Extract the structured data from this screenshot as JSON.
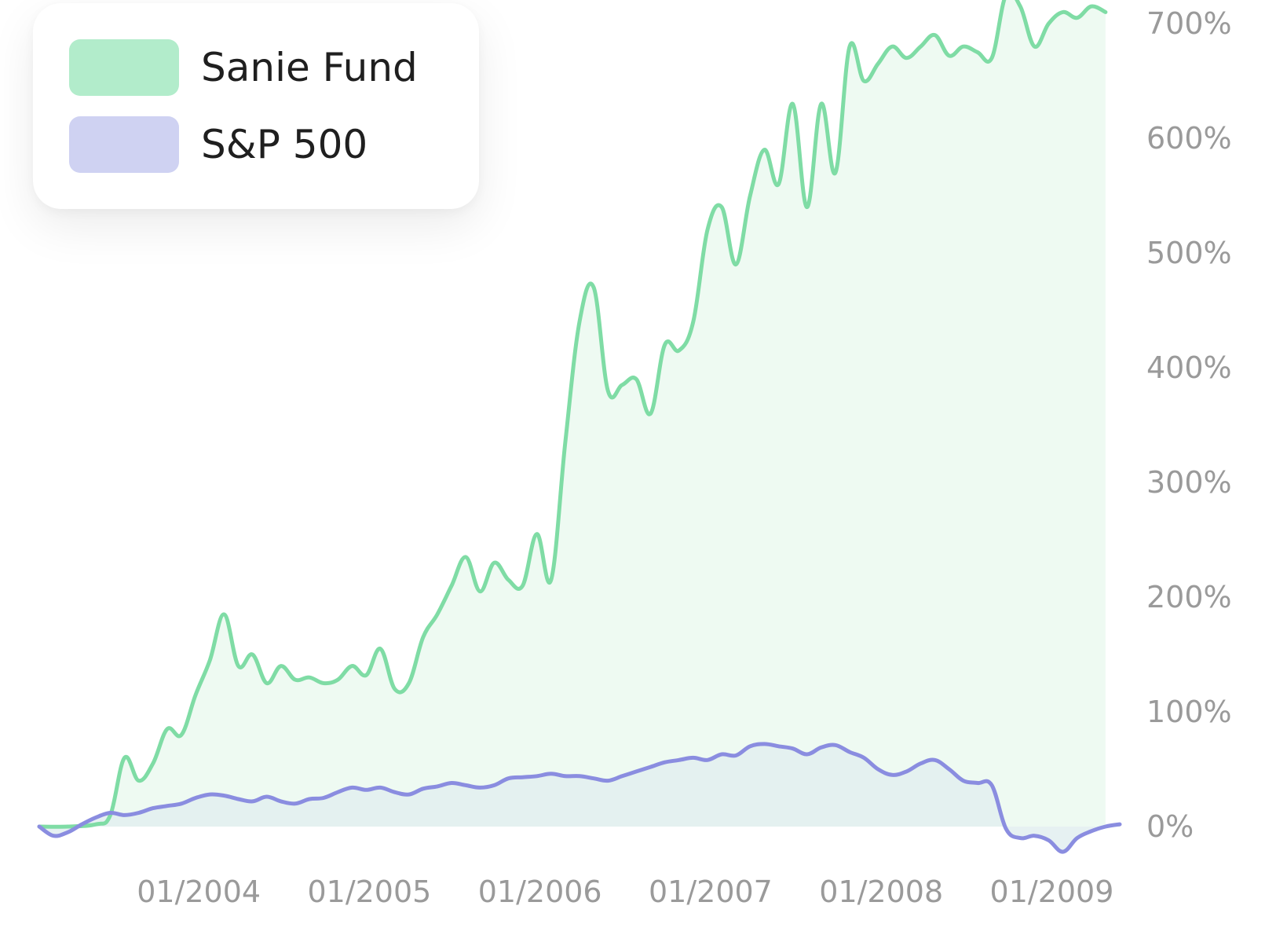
{
  "chart_data": {
    "type": "area",
    "title": "",
    "xlabel": "",
    "ylabel": "",
    "x_tick_labels": [
      "01/2004",
      "01/2005",
      "01/2006",
      "01/2007",
      "01/2008",
      "01/2009"
    ],
    "y_tick_labels": [
      "0%",
      "100%",
      "200%",
      "300%",
      "400%",
      "500%",
      "600%",
      "700%"
    ],
    "ylim": [
      -30,
      720
    ],
    "xlim": [
      "2003-02",
      "2009-06"
    ],
    "legend_position": "top-left",
    "grid": false,
    "series": [
      {
        "name": "Sanie Fund",
        "color": "#7fdca5",
        "fill": "#eefaf2",
        "swatch": "#b2eccb",
        "points": [
          [
            "2003-02",
            0
          ],
          [
            "2003-04",
            0
          ],
          [
            "2003-06",
            2
          ],
          [
            "2003-07",
            10
          ],
          [
            "2003-08",
            60
          ],
          [
            "2003-09",
            40
          ],
          [
            "2003-10",
            55
          ],
          [
            "2003-11",
            85
          ],
          [
            "2003-12",
            80
          ],
          [
            "2004-01",
            115
          ],
          [
            "2004-02",
            145
          ],
          [
            "2004-03",
            185
          ],
          [
            "2004-04",
            140
          ],
          [
            "2004-05",
            150
          ],
          [
            "2004-06",
            125
          ],
          [
            "2004-07",
            140
          ],
          [
            "2004-08",
            128
          ],
          [
            "2004-09",
            130
          ],
          [
            "2004-10",
            125
          ],
          [
            "2004-11",
            128
          ],
          [
            "2004-12",
            140
          ],
          [
            "2005-01",
            132
          ],
          [
            "2005-02",
            155
          ],
          [
            "2005-03",
            120
          ],
          [
            "2005-04",
            125
          ],
          [
            "2005-05",
            165
          ],
          [
            "2005-06",
            185
          ],
          [
            "2005-07",
            210
          ],
          [
            "2005-08",
            235
          ],
          [
            "2005-09",
            205
          ],
          [
            "2005-10",
            230
          ],
          [
            "2005-11",
            215
          ],
          [
            "2005-12",
            210
          ],
          [
            "2006-01",
            255
          ],
          [
            "2006-02",
            215
          ],
          [
            "2006-03",
            335
          ],
          [
            "2006-04",
            440
          ],
          [
            "2006-05",
            470
          ],
          [
            "2006-06",
            380
          ],
          [
            "2006-07",
            385
          ],
          [
            "2006-08",
            390
          ],
          [
            "2006-09",
            360
          ],
          [
            "2006-10",
            420
          ],
          [
            "2006-11",
            415
          ],
          [
            "2006-12",
            440
          ],
          [
            "2007-01",
            520
          ],
          [
            "2007-02",
            540
          ],
          [
            "2007-03",
            490
          ],
          [
            "2007-04",
            550
          ],
          [
            "2007-05",
            590
          ],
          [
            "2007-06",
            560
          ],
          [
            "2007-07",
            630
          ],
          [
            "2007-08",
            540
          ],
          [
            "2007-09",
            630
          ],
          [
            "2007-10",
            570
          ],
          [
            "2007-11",
            680
          ],
          [
            "2007-12",
            650
          ],
          [
            "2008-01",
            665
          ],
          [
            "2008-02",
            680
          ],
          [
            "2008-03",
            670
          ],
          [
            "2008-04",
            680
          ],
          [
            "2008-05",
            690
          ],
          [
            "2008-06",
            672
          ],
          [
            "2008-07",
            680
          ],
          [
            "2008-08",
            675
          ],
          [
            "2008-09",
            670
          ],
          [
            "2008-10",
            725
          ],
          [
            "2008-11",
            715
          ],
          [
            "2008-12",
            680
          ],
          [
            "2009-01",
            700
          ],
          [
            "2009-02",
            710
          ],
          [
            "2009-03",
            705
          ],
          [
            "2009-04",
            715
          ],
          [
            "2009-05",
            710
          ]
        ]
      },
      {
        "name": "S&P 500",
        "color": "#8a8de0",
        "fill": "#e2eef0",
        "swatch": "#cfd2f2",
        "points": [
          [
            "2003-02",
            0
          ],
          [
            "2003-03",
            -8
          ],
          [
            "2003-04",
            -5
          ],
          [
            "2003-05",
            2
          ],
          [
            "2003-06",
            8
          ],
          [
            "2003-07",
            12
          ],
          [
            "2003-08",
            10
          ],
          [
            "2003-09",
            12
          ],
          [
            "2003-10",
            16
          ],
          [
            "2003-11",
            18
          ],
          [
            "2003-12",
            20
          ],
          [
            "2004-01",
            25
          ],
          [
            "2004-02",
            28
          ],
          [
            "2004-03",
            27
          ],
          [
            "2004-04",
            24
          ],
          [
            "2004-05",
            22
          ],
          [
            "2004-06",
            26
          ],
          [
            "2004-07",
            22
          ],
          [
            "2004-08",
            20
          ],
          [
            "2004-09",
            24
          ],
          [
            "2004-10",
            25
          ],
          [
            "2004-11",
            30
          ],
          [
            "2004-12",
            34
          ],
          [
            "2005-01",
            32
          ],
          [
            "2005-02",
            34
          ],
          [
            "2005-03",
            30
          ],
          [
            "2005-04",
            28
          ],
          [
            "2005-05",
            33
          ],
          [
            "2005-06",
            35
          ],
          [
            "2005-07",
            38
          ],
          [
            "2005-08",
            36
          ],
          [
            "2005-09",
            34
          ],
          [
            "2005-10",
            36
          ],
          [
            "2005-11",
            42
          ],
          [
            "2005-12",
            43
          ],
          [
            "2006-01",
            44
          ],
          [
            "2006-02",
            46
          ],
          [
            "2006-03",
            44
          ],
          [
            "2006-04",
            44
          ],
          [
            "2006-05",
            42
          ],
          [
            "2006-06",
            40
          ],
          [
            "2006-07",
            44
          ],
          [
            "2006-08",
            48
          ],
          [
            "2006-09",
            52
          ],
          [
            "2006-10",
            56
          ],
          [
            "2006-11",
            58
          ],
          [
            "2006-12",
            60
          ],
          [
            "2007-01",
            58
          ],
          [
            "2007-02",
            63
          ],
          [
            "2007-03",
            62
          ],
          [
            "2007-04",
            70
          ],
          [
            "2007-05",
            72
          ],
          [
            "2007-06",
            70
          ],
          [
            "2007-07",
            68
          ],
          [
            "2007-08",
            63
          ],
          [
            "2007-09",
            69
          ],
          [
            "2007-10",
            71
          ],
          [
            "2007-11",
            65
          ],
          [
            "2007-12",
            60
          ],
          [
            "2008-01",
            50
          ],
          [
            "2008-02",
            45
          ],
          [
            "2008-03",
            48
          ],
          [
            "2008-04",
            55
          ],
          [
            "2008-05",
            58
          ],
          [
            "2008-06",
            50
          ],
          [
            "2008-07",
            40
          ],
          [
            "2008-08",
            38
          ],
          [
            "2008-09",
            36
          ],
          [
            "2008-10",
            -2
          ],
          [
            "2008-11",
            -10
          ],
          [
            "2008-12",
            -8
          ],
          [
            "2009-01",
            -12
          ],
          [
            "2009-02",
            -22
          ],
          [
            "2009-03",
            -10
          ],
          [
            "2009-04",
            -4
          ],
          [
            "2009-05",
            0
          ],
          [
            "2009-06",
            2
          ]
        ]
      }
    ]
  }
}
